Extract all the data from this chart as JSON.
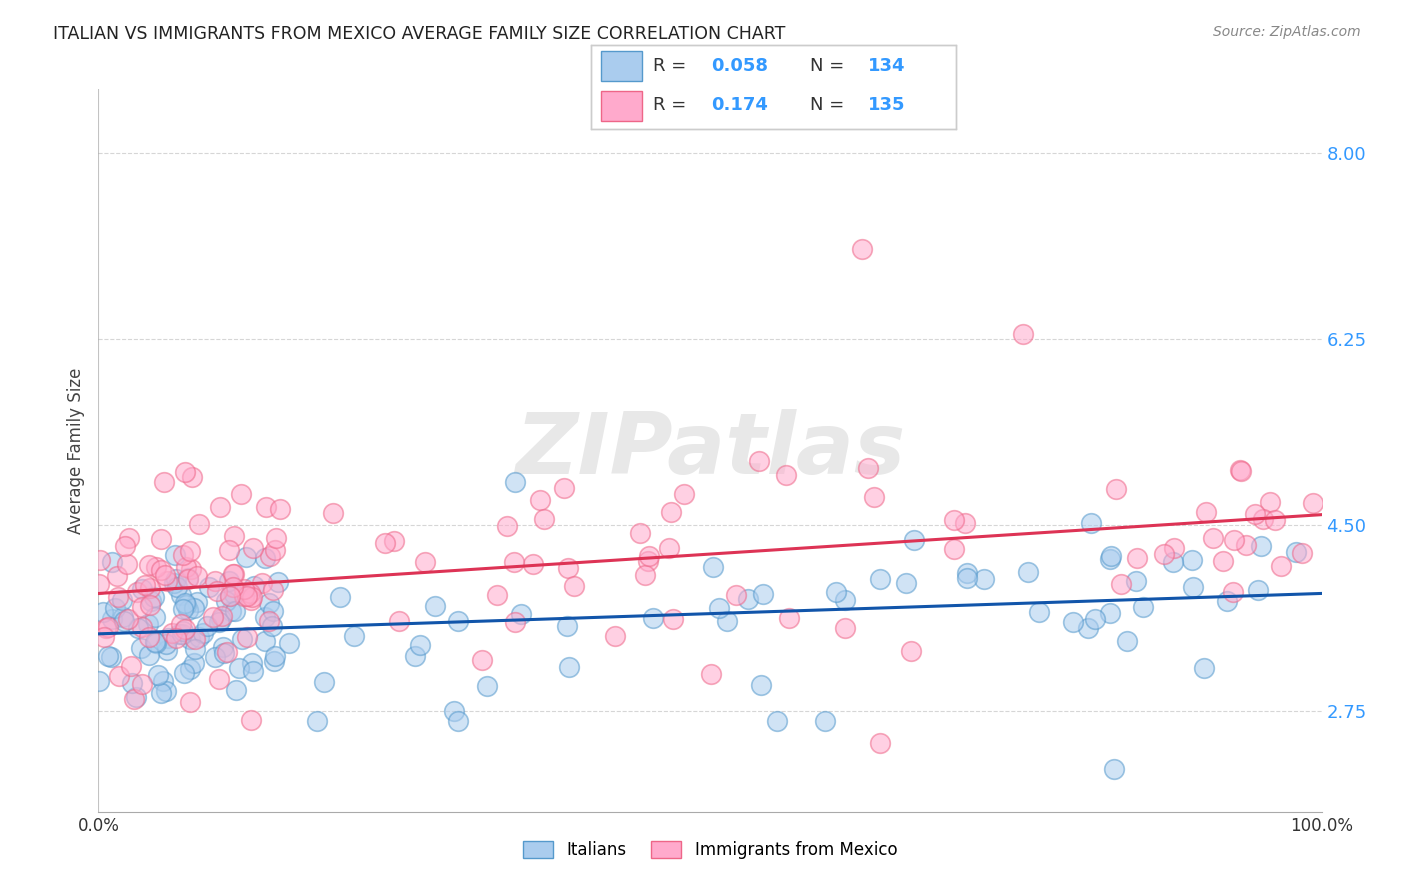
{
  "title": "ITALIAN VS IMMIGRANTS FROM MEXICO AVERAGE FAMILY SIZE CORRELATION CHART",
  "source": "Source: ZipAtlas.com",
  "ylabel": "Average Family Size",
  "xlim": [
    0.0,
    1.0
  ],
  "ylim": [
    1.8,
    8.6
  ],
  "yticks": [
    2.75,
    4.5,
    6.25,
    8.0
  ],
  "legend_bottom": [
    "Italians",
    "Immigrants from Mexico"
  ],
  "italian_fill_color": "#aaccee",
  "italian_edge_color": "#5599cc",
  "mexico_fill_color": "#ffaacc",
  "mexico_edge_color": "#ee6688",
  "italian_line_color": "#1155aa",
  "mexico_line_color": "#dd3355",
  "background_color": "#ffffff",
  "grid_color": "#bbbbbb",
  "title_color": "#222222",
  "watermark": "ZIPatlas",
  "ytick_color": "#3399ff",
  "legend_R_color": "#3399ff",
  "legend_N_color": "#3399ff"
}
